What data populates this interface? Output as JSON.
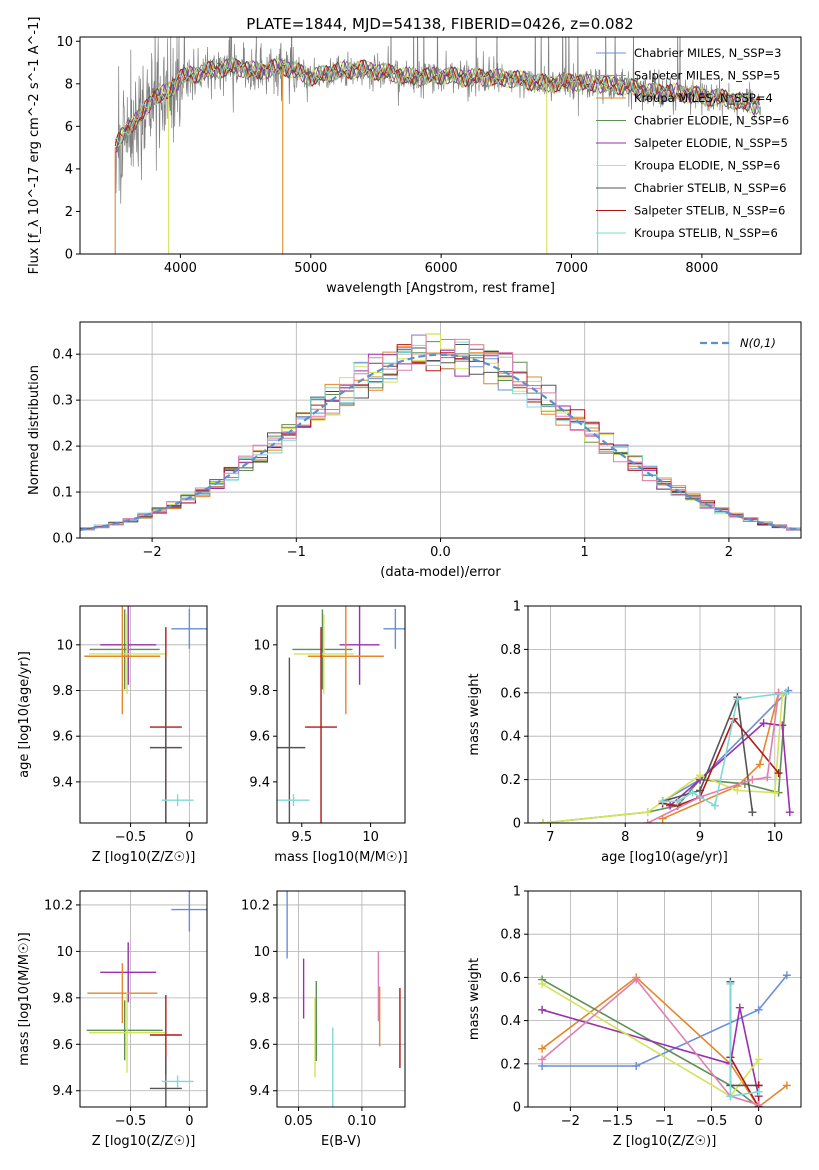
{
  "figure": {
    "title": "PLATE=1844, MJD=54138, FIBERID=0426, z=0.082"
  },
  "colors": {
    "chabrier_miles": "#6a8fd8",
    "salpeter_miles": "#e5862a",
    "kroupa_miles": "#d98c2c",
    "chabrier_elodie": "#5f8f54",
    "salpeter_elodie": "#9b2fae",
    "kroupa_elodie": "#d4e35a",
    "chabrier_stelib": "#555555",
    "salpeter_stelib": "#b01818",
    "kroupa_stelib": "#80d8d8",
    "pink": "#e07fb0",
    "observed": "#808080",
    "gauss": "#5b8fd0"
  },
  "chart_data": [
    {
      "id": "spectrum",
      "type": "line",
      "title": "PLATE=1844, MJD=54138, FIBERID=0426, z=0.082",
      "xlabel": "wavelength [Angstrom, rest frame]",
      "ylabel": "Flux [f_λ 10^-17 erg cm^-2 s^-1 A^-1]",
      "xlim": [
        3230,
        8760
      ],
      "ylim": [
        0,
        10.2
      ],
      "xticks": [
        4000,
        5000,
        6000,
        7000,
        8000
      ],
      "yticks": [
        0,
        2,
        4,
        6,
        8,
        10
      ],
      "legend_position": "right",
      "legend": [
        {
          "label": "Chabrier MILES, N_SSP=3",
          "color": "#6a8fd8"
        },
        {
          "label": "Salpeter MILES, N_SSP=5",
          "color": "#e5862a"
        },
        {
          "label": "Kroupa MILES, N_SSP=4",
          "color": "#d98c2c"
        },
        {
          "label": "Chabrier ELODIE, N_SSP=6",
          "color": "#5f8f54"
        },
        {
          "label": "Salpeter ELODIE, N_SSP=5",
          "color": "#9b2fae"
        },
        {
          "label": "Kroupa ELODIE, N_SSP=6",
          "color": "#d4e35a"
        },
        {
          "label": "Chabrier STELIB, N_SSP=6",
          "color": "#555555"
        },
        {
          "label": "Salpeter STELIB, N_SSP=6",
          "color": "#b01818"
        },
        {
          "label": "Kroupa STELIB, N_SSP=6",
          "color": "#80d8d8"
        }
      ],
      "model_x": [
        3500,
        3600,
        3700,
        3800,
        3900,
        4000,
        4200,
        4400,
        4600,
        4800,
        5000,
        5200,
        5400,
        5600,
        5800,
        6000,
        6200,
        6400,
        6600,
        6800,
        7000,
        7200,
        7400,
        7600,
        7800,
        8000,
        8200,
        8400
      ],
      "model_y": [
        5.0,
        6.0,
        6.5,
        7.4,
        7.6,
        8.3,
        8.6,
        8.8,
        8.6,
        8.8,
        8.3,
        8.6,
        8.7,
        8.5,
        8.3,
        8.4,
        8.3,
        8.3,
        8.2,
        8.0,
        8.1,
        8.0,
        7.9,
        7.6,
        7.6,
        7.4,
        7.3,
        7.0
      ]
    },
    {
      "id": "residuals",
      "type": "line",
      "xlabel": "(data-model)/error",
      "ylabel": "Normed distribution",
      "xlim": [
        -2.5,
        2.5
      ],
      "ylim": [
        0,
        0.47
      ],
      "xticks": [
        -2,
        -1,
        0,
        1,
        2
      ],
      "yticks": [
        0.0,
        0.1,
        0.2,
        0.3,
        0.4
      ],
      "legend_position": "top-right",
      "legend": [
        {
          "label": "N(0,1)",
          "color": "#5b8fd0"
        }
      ]
    },
    {
      "id": "age_vs_Z",
      "type": "scatter",
      "xlabel": "Z [log10(Z/Z☉)]",
      "ylabel": "age [log10(age/yr)]",
      "xlim": [
        -0.93,
        0.15
      ],
      "ylim": [
        9.22,
        10.17
      ],
      "xticks": [
        -0.5,
        0.0
      ],
      "yticks": [
        9.4,
        9.6,
        9.8,
        10.0
      ],
      "points": [
        {
          "x": 0.0,
          "y": 10.07,
          "color": "#6a8fd8"
        },
        {
          "x": -0.52,
          "y": 10.0,
          "color": "#9b2fae"
        },
        {
          "x": -0.55,
          "y": 9.98,
          "color": "#5f8f54"
        },
        {
          "x": -0.53,
          "y": 9.96,
          "color": "#d4e35a"
        },
        {
          "x": -0.57,
          "y": 9.95,
          "color": "#e5862a"
        },
        {
          "x": -0.2,
          "y": 9.64,
          "color": "#b01818"
        },
        {
          "x": -0.2,
          "y": 9.55,
          "color": "#555555"
        },
        {
          "x": -0.1,
          "y": 9.32,
          "color": "#80d8d8"
        }
      ]
    },
    {
      "id": "age_vs_mass",
      "type": "scatter",
      "xlabel": "mass [log10(M/M☉)]",
      "ylabel": "",
      "xlim": [
        9.32,
        10.25
      ],
      "ylim": [
        9.22,
        10.17
      ],
      "xticks": [
        9.5,
        10.0
      ],
      "yticks": [
        9.4,
        9.6,
        9.8,
        10.0
      ],
      "points": [
        {
          "x": 10.18,
          "y": 10.07,
          "color": "#6a8fd8"
        },
        {
          "x": 9.92,
          "y": 10.0,
          "color": "#9b2fae"
        },
        {
          "x": 9.65,
          "y": 9.98,
          "color": "#5f8f54"
        },
        {
          "x": 9.66,
          "y": 9.96,
          "color": "#d4e35a"
        },
        {
          "x": 9.82,
          "y": 9.95,
          "color": "#e5862a"
        },
        {
          "x": 9.64,
          "y": 9.64,
          "color": "#b01818"
        },
        {
          "x": 9.41,
          "y": 9.55,
          "color": "#555555"
        },
        {
          "x": 9.44,
          "y": 9.32,
          "color": "#80d8d8"
        }
      ]
    },
    {
      "id": "weight_vs_age",
      "type": "line",
      "xlabel": "age [log10(age/yr)]",
      "ylabel": "mass weight",
      "xlim": [
        6.7,
        10.35
      ],
      "ylim": [
        0,
        1.0
      ],
      "xticks": [
        7,
        8,
        9,
        10
      ],
      "yticks": [
        0.0,
        0.2,
        0.4,
        0.6,
        0.8,
        1.0
      ],
      "series": [
        {
          "color": "#6a8fd8",
          "x": [
            8.5,
            9.0,
            10.18
          ],
          "y": [
            0.1,
            0.2,
            0.61
          ]
        },
        {
          "color": "#e5862a",
          "x": [
            8.5,
            9.5,
            9.8,
            10.05
          ],
          "y": [
            0.02,
            0.17,
            0.27,
            0.6
          ]
        },
        {
          "color": "#5f8f54",
          "x": [
            6.9,
            8.3,
            8.7,
            9.0,
            9.6,
            10.05,
            10.15
          ],
          "y": [
            0.0,
            0.05,
            0.08,
            0.2,
            0.18,
            0.14,
            0.6
          ]
        },
        {
          "color": "#9b2fae",
          "x": [
            8.6,
            9.0,
            9.85,
            10.1,
            10.2
          ],
          "y": [
            0.08,
            0.2,
            0.46,
            0.45,
            0.05
          ]
        },
        {
          "color": "#d4e35a",
          "x": [
            6.9,
            8.3,
            9.0,
            9.5,
            10.0,
            10.1
          ],
          "y": [
            0.0,
            0.05,
            0.22,
            0.15,
            0.14,
            0.59
          ]
        },
        {
          "color": "#555555",
          "x": [
            8.5,
            9.0,
            9.5,
            9.7
          ],
          "y": [
            0.1,
            0.15,
            0.58,
            0.05
          ]
        },
        {
          "color": "#b01818",
          "x": [
            8.5,
            8.7,
            9.0,
            9.45,
            10.05
          ],
          "y": [
            0.09,
            0.08,
            0.12,
            0.48,
            0.23
          ]
        },
        {
          "color": "#e07fb0",
          "x": [
            8.3,
            9.0,
            9.7,
            9.9,
            10.05
          ],
          "y": [
            0.0,
            0.12,
            0.2,
            0.21,
            0.6
          ]
        },
        {
          "color": "#80d8d8",
          "x": [
            8.5,
            8.7,
            8.9,
            9.2,
            9.5,
            10.15
          ],
          "y": [
            0.1,
            0.1,
            0.14,
            0.08,
            0.57,
            0.6
          ]
        }
      ]
    },
    {
      "id": "mass_vs_Z",
      "type": "scatter",
      "xlabel": "Z [log10(Z/Z☉)]",
      "ylabel": "mass [log10(M/M☉)]",
      "xlim": [
        -0.93,
        0.15
      ],
      "ylim": [
        9.33,
        10.26
      ],
      "xticks": [
        -0.5,
        0.0
      ],
      "yticks": [
        9.4,
        9.6,
        9.8,
        10.0,
        10.2
      ],
      "points": [
        {
          "x": 0.0,
          "y": 10.18,
          "color": "#6a8fd8"
        },
        {
          "x": -0.52,
          "y": 9.91,
          "color": "#9b2fae"
        },
        {
          "x": -0.57,
          "y": 9.82,
          "color": "#e5862a"
        },
        {
          "x": -0.55,
          "y": 9.66,
          "color": "#5f8f54"
        },
        {
          "x": -0.53,
          "y": 9.65,
          "color": "#d4e35a"
        },
        {
          "x": -0.2,
          "y": 9.64,
          "color": "#b01818"
        },
        {
          "x": -0.2,
          "y": 9.41,
          "color": "#555555"
        },
        {
          "x": -0.1,
          "y": 9.44,
          "color": "#80d8d8"
        }
      ]
    },
    {
      "id": "mass_vs_ebv",
      "type": "scatter",
      "xlabel": "E(B-V)",
      "ylabel": "",
      "xlim": [
        0.033,
        0.134
      ],
      "ylim": [
        9.33,
        10.26
      ],
      "xticks": [
        0.05,
        0.1
      ],
      "yticks": [
        9.4,
        9.6,
        9.8,
        10.0,
        10.2
      ],
      "points": [
        {
          "x": 0.041,
          "y": 10.12,
          "color": "#6a8fd8"
        },
        {
          "x": 0.054,
          "y": 9.84,
          "color": "#9b2fae"
        },
        {
          "x": 0.063,
          "y": 9.63,
          "color": "#d4e35a"
        },
        {
          "x": 0.064,
          "y": 9.7,
          "color": "#5f8f54"
        },
        {
          "x": 0.077,
          "y": 9.5,
          "color": "#80d8d8"
        },
        {
          "x": 0.113,
          "y": 9.85,
          "color": "#e07fb0"
        },
        {
          "x": 0.114,
          "y": 9.72,
          "color": "#e5862a"
        },
        {
          "x": 0.13,
          "y": 9.67,
          "color": "#b01818"
        }
      ]
    },
    {
      "id": "weight_vs_Z",
      "type": "line",
      "xlabel": "Z [log10(Z/Z☉)]",
      "ylabel": "mass weight",
      "xlim": [
        -2.45,
        0.45
      ],
      "ylim": [
        0,
        1.0
      ],
      "xticks": [
        -2.0,
        -1.5,
        -1.0,
        -0.5,
        0.0
      ],
      "yticks": [
        0.0,
        0.2,
        0.4,
        0.6,
        0.8,
        1.0
      ],
      "series": [
        {
          "color": "#6a8fd8",
          "x": [
            -2.3,
            -1.3,
            0.0,
            0.3
          ],
          "y": [
            0.19,
            0.19,
            0.45,
            0.61
          ]
        },
        {
          "color": "#e5862a",
          "x": [
            -2.3,
            -1.3,
            -0.3,
            0.0,
            0.3
          ],
          "y": [
            0.27,
            0.6,
            0.2,
            0.0,
            0.1
          ]
        },
        {
          "color": "#5f8f54",
          "x": [
            -2.3,
            -0.3,
            0.0
          ],
          "y": [
            0.59,
            0.1,
            0.0
          ]
        },
        {
          "color": "#9b2fae",
          "x": [
            -2.3,
            -0.3,
            -0.2,
            0.0
          ],
          "y": [
            0.45,
            0.2,
            0.46,
            0.05
          ]
        },
        {
          "color": "#d4e35a",
          "x": [
            -2.3,
            -0.3,
            0.0
          ],
          "y": [
            0.57,
            0.05,
            0.22
          ]
        },
        {
          "color": "#555555",
          "x": [
            -0.3,
            -0.3,
            0.0
          ],
          "y": [
            0.58,
            0.1,
            0.1
          ]
        },
        {
          "color": "#b01818",
          "x": [
            -0.3,
            0.0,
            0.0
          ],
          "y": [
            0.23,
            0.0,
            0.1
          ]
        },
        {
          "color": "#e07fb0",
          "x": [
            -2.3,
            -1.3,
            -0.3,
            0.0
          ],
          "y": [
            0.22,
            0.59,
            0.05,
            0.01
          ]
        },
        {
          "color": "#80d8d8",
          "x": [
            -0.3,
            -0.3,
            0.0
          ],
          "y": [
            0.57,
            0.05,
            0.07
          ]
        }
      ]
    }
  ]
}
